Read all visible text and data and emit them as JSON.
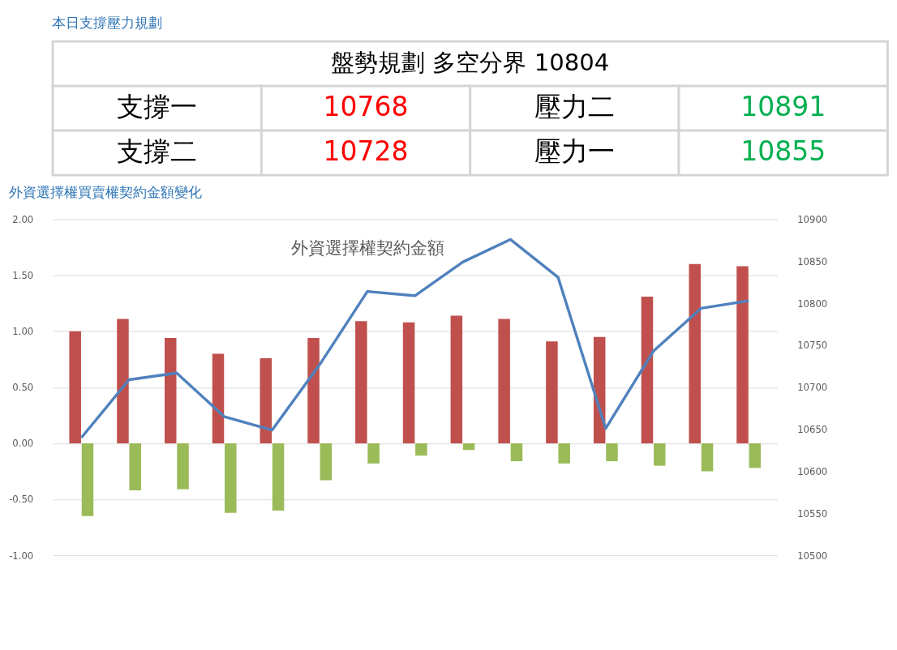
{
  "chart_data": [
    {
      "type": "other",
      "title": "本日支撐壓力規劃",
      "annotations": [
        "盤勢規劃 多空分界 10804",
        "支撐一",
        "10768",
        "壓力二",
        "10891",
        "支撐二",
        "10728",
        "壓力一",
        "10855"
      ]
    },
    {
      "type": "bar",
      "title": "外資選擇權契約金額",
      "annotations": [
        "外資選擇權買賣權契約金額變化"
      ],
      "categories": [
        null,
        null,
        null,
        null,
        null,
        null,
        null,
        null,
        null,
        null,
        null,
        null,
        null,
        null,
        null
      ],
      "series": [
        {
          "color": "#c0504d",
          "values": [
            1.0,
            1.11,
            0.94,
            0.8,
            0.76,
            0.94,
            1.09,
            1.08,
            1.14,
            1.11,
            0.91,
            0.95,
            1.31,
            1.6,
            1.58
          ]
        },
        {
          "color": "#9bbb59",
          "values": [
            -0.65,
            -0.42,
            -0.41,
            -0.62,
            -0.6,
            -0.33,
            -0.18,
            -0.11,
            -0.06,
            -0.16,
            -0.18,
            -0.16,
            -0.2,
            -0.25,
            -0.22
          ]
        },
        {
          "type": "line",
          "axis": "y2",
          "color": "#4f81bd",
          "values": [
            10640,
            10709,
            10717,
            10665,
            10649,
            10727,
            10814,
            10809,
            10849,
            10876,
            10831,
            10651,
            10743,
            10794,
            10803
          ]
        }
      ],
      "ylim": [
        -1.0,
        2.0
      ],
      "yticks": [
        {
          "value": -1,
          "label": "-1.00"
        },
        {
          "value": -0.5,
          "label": "-0.50"
        },
        {
          "value": 0,
          "label": "0.00"
        },
        {
          "value": 0.5,
          "label": "0.50"
        },
        {
          "value": 1,
          "label": "1.00"
        },
        {
          "value": 1.5,
          "label": "1.50"
        },
        {
          "value": 2,
          "label": "2.00"
        }
      ],
      "y2lim": [
        10500,
        10900
      ],
      "y2ticks": [
        10500,
        10550,
        10600,
        10650,
        10700,
        10750,
        10800,
        10850,
        10900
      ],
      "grid": "y"
    }
  ]
}
